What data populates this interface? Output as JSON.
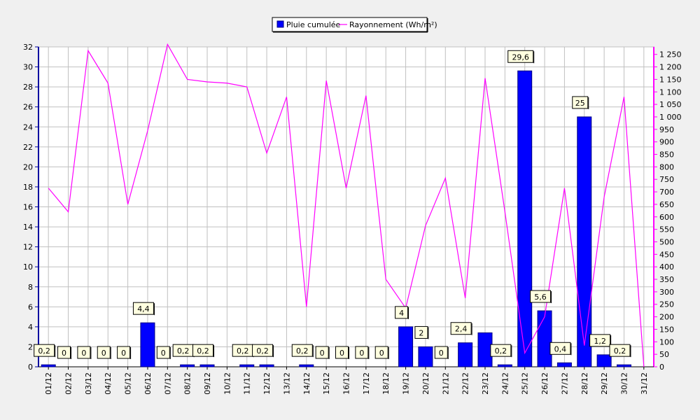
{
  "chart_data": {
    "type": "bar",
    "categories": [
      "01/12",
      "02/12",
      "03/12",
      "04/12",
      "05/12",
      "06/12",
      "07/12",
      "08/12",
      "09/12",
      "10/12",
      "11/12",
      "12/12",
      "13/12",
      "14/12",
      "15/12",
      "16/12",
      "17/12",
      "18/12",
      "19/12",
      "20/12",
      "21/12",
      "22/12",
      "23/12",
      "24/12",
      "25/12",
      "26/12",
      "27/12",
      "28/12",
      "29/12",
      "30/12",
      "31/12"
    ],
    "series": [
      {
        "name": "Pluie cumulée",
        "type": "bar",
        "axis": "left",
        "color": "#0000ff",
        "values": [
          0.2,
          0,
          0,
          0,
          0,
          4.4,
          0,
          0.2,
          0.2,
          0,
          0.2,
          0.2,
          0,
          0.2,
          0,
          0,
          0,
          0,
          4,
          2,
          0,
          2.4,
          3.4,
          0.2,
          29.6,
          5.6,
          0.4,
          25,
          1.2,
          0.2,
          0
        ],
        "labels": [
          "0,2",
          "0",
          "0",
          "0",
          "0",
          "4,4",
          "0",
          "0,2",
          "0,2",
          null,
          "0,2",
          "0,2",
          null,
          "0,2",
          "0",
          "0",
          "0",
          "0",
          "4",
          "2",
          "0",
          "2,4",
          null,
          "0,2",
          "29,6",
          "5,6",
          "0,4",
          "25",
          "1,2",
          "0,2",
          null
        ]
      },
      {
        "name": "Rayonnement (Wh/m²)",
        "type": "line",
        "axis": "right",
        "color": "#ff00ff",
        "values": [
          715,
          620,
          1265,
          1135,
          650,
          945,
          1290,
          1150,
          1140,
          1135,
          1120,
          855,
          1080,
          240,
          1145,
          715,
          1085,
          350,
          235,
          565,
          755,
          275,
          1155,
          620,
          55,
          200,
          715,
          85,
          680,
          1080,
          0
        ]
      }
    ],
    "y_left": {
      "min": 0,
      "max": 32,
      "ticks": [
        "0",
        "2",
        "4",
        "6",
        "8",
        "10",
        "12",
        "14",
        "16",
        "18",
        "20",
        "22",
        "24",
        "26",
        "28",
        "30",
        "32"
      ]
    },
    "y_right": {
      "min": 0,
      "max": 1280,
      "ticks": [
        "0",
        "50",
        "100",
        "150",
        "200",
        "250",
        "300",
        "350",
        "400",
        "450",
        "500",
        "550",
        "600",
        "650",
        "700",
        "750",
        "800",
        "850",
        "900",
        "950",
        "1 000",
        "1 050",
        "1 100",
        "1 150",
        "1 200",
        "1 250"
      ]
    },
    "grid": true,
    "legend_position": "top-center"
  },
  "colors": {
    "background": "#f0f0f0",
    "plot_background": "#ffffff",
    "grid": "#c0c0c0",
    "left_axis": "#0000a0",
    "right_axis": "#ff00ff"
  }
}
